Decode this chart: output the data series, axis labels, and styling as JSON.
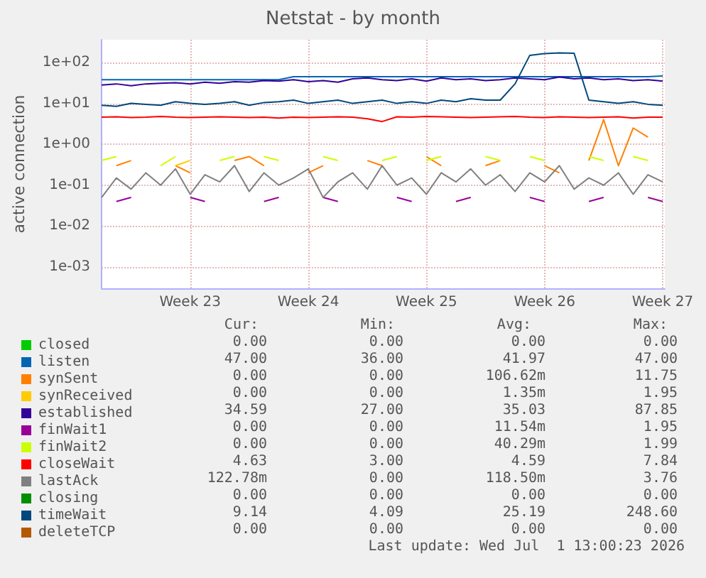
{
  "chart_data": {
    "type": "line",
    "title": "Netstat - by month",
    "ylabel": "active connection",
    "x": [
      "2026-05-26T18:00",
      "2026-05-27T15:00",
      "2026-05-28T12:00",
      "2026-05-29T09:00",
      "2026-05-30T06:00",
      "2026-05-31T03:00",
      "2026-06-01T00:00",
      "2026-06-01T21:00",
      "2026-06-02T18:00",
      "2026-06-03T15:00",
      "2026-06-04T12:00",
      "2026-06-05T09:00",
      "2026-06-06T06:00",
      "2026-06-07T03:00",
      "2026-06-08T00:00",
      "2026-06-08T21:00",
      "2026-06-09T18:00",
      "2026-06-10T15:00",
      "2026-06-11T12:00",
      "2026-06-12T09:00",
      "2026-06-13T06:00",
      "2026-06-14T03:00",
      "2026-06-15T00:00",
      "2026-06-15T21:00",
      "2026-06-16T18:00",
      "2026-06-17T15:00",
      "2026-06-18T12:00",
      "2026-06-19T09:00",
      "2026-06-20T06:00",
      "2026-06-21T03:00",
      "2026-06-22T00:00",
      "2026-06-22T21:00",
      "2026-06-23T18:00",
      "2026-06-24T15:00",
      "2026-06-25T12:00",
      "2026-06-26T09:00",
      "2026-06-27T06:00",
      "2026-06-28T03:00",
      "2026-06-29T00:00"
    ],
    "xlim": [
      "2026-05-26T18:00",
      "2026-06-29T03:00"
    ],
    "xticks": [
      {
        "value": "2026-06-01",
        "label": "Week 23"
      },
      {
        "value": "2026-06-08",
        "label": "Week 24"
      },
      {
        "value": "2026-06-15",
        "label": "Week 25"
      },
      {
        "value": "2026-06-22",
        "label": "Week 26"
      },
      {
        "value": "2026-06-29",
        "label": "Week 27"
      }
    ],
    "ylim": [
      0.0003,
      360
    ],
    "log": "y",
    "yticks": [
      {
        "value": 100,
        "label": "1e+02"
      },
      {
        "value": 10,
        "label": "1e+01"
      },
      {
        "value": 1,
        "label": "1e+00"
      },
      {
        "value": 0.1,
        "label": "1e-01"
      },
      {
        "value": 0.01,
        "label": "1e-02"
      },
      {
        "value": 0.001,
        "label": "1e-03"
      }
    ],
    "grid": true,
    "legend": "bottom",
    "marker": "none",
    "line_style": "solid",
    "series": [
      {
        "name": "closed",
        "color": "#00cc00",
        "values": [
          null,
          null,
          null,
          null,
          null,
          null,
          null,
          null,
          null,
          null,
          null,
          null,
          null,
          null,
          null,
          null,
          null,
          null,
          null,
          null,
          null,
          null,
          null,
          null,
          null,
          null,
          null,
          null,
          null,
          null,
          null,
          null,
          null,
          null,
          null,
          null,
          null,
          null,
          null
        ]
      },
      {
        "name": "listen",
        "color": "#0066b3",
        "values": [
          38,
          38,
          38,
          38,
          38,
          38,
          38,
          38,
          38,
          38,
          38,
          38,
          38,
          45,
          45,
          45,
          45,
          45,
          45,
          45,
          45,
          45,
          45,
          45,
          45,
          45,
          45,
          45,
          45,
          45,
          45,
          45,
          45,
          45,
          45,
          45,
          45,
          45,
          47
        ]
      },
      {
        "name": "synSent",
        "color": "#ff8000",
        "values": [
          null,
          0.3,
          0.4,
          null,
          null,
          0.3,
          0.2,
          null,
          null,
          0.4,
          0.5,
          0.3,
          null,
          null,
          0.2,
          0.3,
          null,
          null,
          0.4,
          0.3,
          null,
          null,
          0.5,
          0.3,
          null,
          null,
          0.3,
          0.4,
          null,
          null,
          0.3,
          0.2,
          null,
          0.4,
          4,
          0.3,
          2.5,
          1.5,
          null
        ]
      },
      {
        "name": "synReceived",
        "color": "#ffcc00",
        "values": [
          null,
          null,
          null,
          null,
          null,
          0.3,
          0.4,
          null,
          null,
          null,
          null,
          null,
          null,
          null,
          null,
          null,
          null,
          null,
          null,
          null,
          null,
          null,
          null,
          null,
          null,
          null,
          null,
          null,
          null,
          null,
          null,
          null,
          null,
          null,
          null,
          null,
          null,
          null,
          null
        ]
      },
      {
        "name": "established",
        "color": "#330099",
        "values": [
          28,
          30,
          27,
          30,
          31,
          32,
          30,
          33,
          31,
          34,
          33,
          36,
          35,
          38,
          34,
          36,
          33,
          40,
          42,
          38,
          36,
          40,
          35,
          42,
          38,
          40,
          36,
          38,
          42,
          40,
          38,
          44,
          40,
          42,
          38,
          40,
          36,
          38,
          35
        ]
      },
      {
        "name": "finWait1",
        "color": "#990099",
        "values": [
          null,
          0.04,
          0.05,
          null,
          null,
          null,
          0.05,
          0.04,
          null,
          null,
          null,
          0.04,
          0.05,
          null,
          null,
          0.05,
          0.04,
          null,
          null,
          null,
          0.05,
          0.04,
          null,
          null,
          0.04,
          0.05,
          null,
          null,
          null,
          0.05,
          0.04,
          null,
          null,
          0.04,
          0.05,
          null,
          null,
          0.05,
          0.04
        ]
      },
      {
        "name": "finWait2",
        "color": "#ccff00",
        "values": [
          0.4,
          0.5,
          null,
          null,
          0.3,
          0.5,
          null,
          null,
          0.4,
          0.5,
          null,
          0.5,
          0.4,
          null,
          null,
          0.5,
          0.4,
          null,
          null,
          0.4,
          0.5,
          null,
          0.4,
          0.5,
          null,
          null,
          0.5,
          0.4,
          null,
          0.5,
          0.4,
          null,
          null,
          0.5,
          0.4,
          null,
          0.5,
          0.4,
          null
        ]
      },
      {
        "name": "closeWait",
        "color": "#ff0000",
        "values": [
          4.6,
          4.7,
          4.5,
          4.6,
          4.8,
          4.6,
          4.5,
          4.6,
          4.7,
          4.6,
          4.5,
          4.6,
          4.4,
          4.6,
          4.5,
          4.6,
          4.7,
          4.6,
          4.2,
          3.6,
          4.7,
          4.6,
          4.8,
          4.7,
          4.6,
          4.5,
          4.6,
          4.7,
          4.8,
          4.6,
          4.5,
          4.7,
          4.6,
          4.5,
          4.6,
          4.7,
          4.4,
          4.6,
          4.6
        ]
      },
      {
        "name": "lastAck",
        "color": "#808080",
        "values": [
          0.05,
          0.15,
          0.08,
          0.2,
          0.1,
          0.25,
          0.06,
          0.18,
          0.12,
          0.3,
          0.07,
          0.2,
          0.1,
          0.15,
          0.25,
          0.05,
          0.12,
          0.2,
          0.08,
          0.3,
          0.1,
          0.15,
          0.06,
          0.2,
          0.12,
          0.25,
          0.1,
          0.18,
          0.07,
          0.2,
          0.12,
          0.3,
          0.08,
          0.15,
          0.1,
          0.2,
          0.06,
          0.18,
          0.12
        ]
      },
      {
        "name": "closing",
        "color": "#008f00",
        "values": [
          null,
          null,
          null,
          null,
          null,
          null,
          null,
          null,
          null,
          null,
          null,
          null,
          null,
          null,
          null,
          null,
          null,
          null,
          null,
          null,
          null,
          null,
          null,
          null,
          null,
          null,
          null,
          null,
          null,
          null,
          null,
          null,
          null,
          null,
          null,
          null,
          null,
          null,
          null
        ]
      },
      {
        "name": "timeWait",
        "color": "#00487d",
        "values": [
          9,
          8.5,
          10,
          9.5,
          9,
          11,
          10,
          9.5,
          10,
          11,
          9,
          10.5,
          11,
          12,
          10,
          11,
          12,
          10,
          11,
          12,
          10,
          11,
          10,
          12,
          11,
          13,
          12,
          12,
          30,
          150,
          165,
          172,
          168,
          12,
          11,
          10,
          11,
          9.5,
          9
        ]
      },
      {
        "name": "deleteTCP",
        "color": "#b35a00",
        "values": [
          null,
          null,
          null,
          null,
          null,
          null,
          null,
          null,
          null,
          null,
          null,
          null,
          null,
          null,
          null,
          null,
          null,
          null,
          null,
          null,
          null,
          null,
          null,
          null,
          null,
          null,
          null,
          null,
          null,
          null,
          null,
          null,
          null,
          null,
          null,
          null,
          null,
          null,
          null
        ]
      }
    ],
    "annotations": [
      "Cur:",
      "Min:",
      "Avg:",
      "Max:",
      "0.00",
      "0.00",
      "0.00",
      "0.00",
      "47.00",
      "36.00",
      "41.97",
      "47.00",
      "0.00",
      "0.00",
      "106.62m",
      "11.75",
      "0.00",
      "0.00",
      "1.35m",
      "1.95",
      "34.59",
      "27.00",
      "35.03",
      "87.85",
      "0.00",
      "0.00",
      "11.54m",
      "1.95",
      "0.00",
      "0.00",
      "40.29m",
      "1.99",
      "4.63",
      "3.00",
      "4.59",
      "7.84",
      "122.78m",
      "0.00",
      "118.50m",
      "3.76",
      "0.00",
      "0.00",
      "0.00",
      "0.00",
      "9.14",
      "4.09",
      "25.19",
      "248.60",
      "0.00",
      "0.00",
      "0.00",
      "0.00",
      "Last update: Wed Jul  1 13:00:23 2026"
    ]
  }
}
